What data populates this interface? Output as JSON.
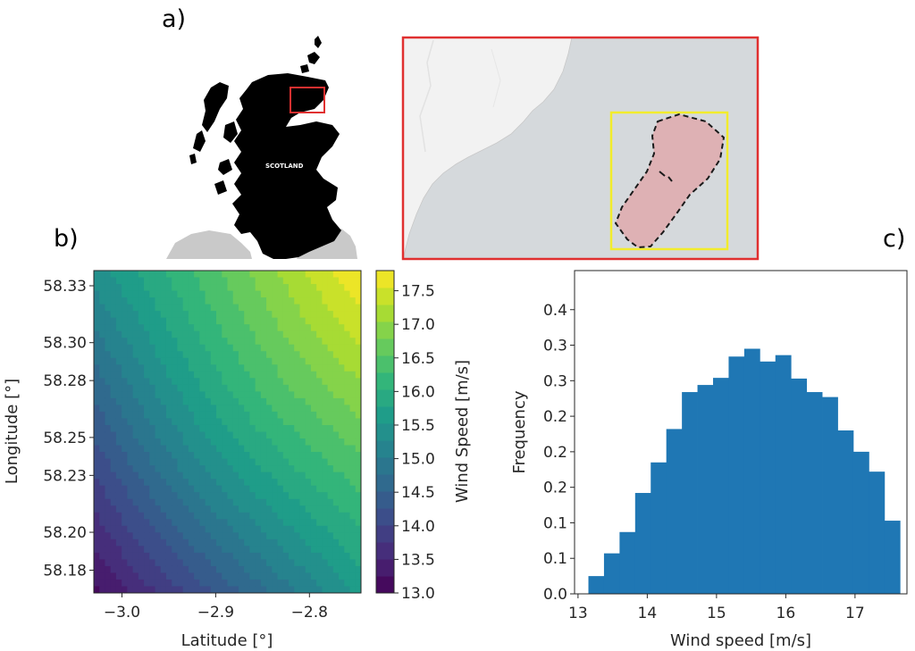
{
  "panels": {
    "a": "a)",
    "b": "b)",
    "c": "c)"
  },
  "map": {
    "country_label": "SCOTLAND",
    "colors": {
      "land": "#000000",
      "sea_inset": "#d5d9dc",
      "land_inset": "#f2f2f2",
      "highlight_box": "#e03030",
      "site_box": "#f2ec2c",
      "site_fill": "#deb1b4"
    }
  },
  "chart_data": [
    {
      "type": "heatmap",
      "xlabel": "Latitude [°]",
      "ylabel": "Longitude [°]",
      "xlim": [
        -3.03,
        -2.745
      ],
      "ylim": [
        58.168,
        58.338
      ],
      "x_ticks": [
        -3.0,
        -2.9,
        -2.8
      ],
      "x_tick_labels": [
        "−3.0",
        "−2.9",
        "−2.8"
      ],
      "y_ticks": [
        58.18,
        58.2,
        58.23,
        58.25,
        58.28,
        58.3,
        58.33
      ],
      "y_tick_labels": [
        "58.18",
        "58.20",
        "58.23",
        "58.25",
        "58.28",
        "58.30",
        "58.33"
      ],
      "colormap": "viridis",
      "value_range": [
        13.0,
        17.8
      ],
      "field": {
        "description_units": "m/s",
        "corner_values": {
          "bottom_left": 13.2,
          "bottom_right": 15.6,
          "top_left": 15.4,
          "top_right": 17.8
        }
      },
      "colorbar": {
        "label": "Wind Speed [m/s]",
        "ticks": [
          13.0,
          13.5,
          14.0,
          14.5,
          15.0,
          15.5,
          16.0,
          16.5,
          17.0,
          17.5
        ],
        "tick_labels": [
          "13.0",
          "13.5",
          "14.0",
          "14.5",
          "15.0",
          "15.5",
          "16.0",
          "16.5",
          "17.0",
          "17.5"
        ],
        "levels": 19
      }
    },
    {
      "type": "bar",
      "xlabel": "Wind speed [m/s]",
      "ylabel": "Frequency",
      "color": "#1f77b4",
      "xlim": [
        12.95,
        17.75
      ],
      "ylim": [
        0,
        0.455
      ],
      "x_ticks": [
        13,
        14,
        15,
        16,
        17
      ],
      "x_tick_labels": [
        "13",
        "14",
        "15",
        "16",
        "17"
      ],
      "y_ticks": [
        0.0,
        0.05,
        0.1,
        0.15,
        0.2,
        0.25,
        0.3,
        0.35,
        0.4
      ],
      "y_tick_labels": [
        "0.0",
        "0.1",
        "0.1",
        "0.2",
        "0.2",
        "0.2",
        "0.3",
        "0.3",
        "0.4"
      ],
      "bin_edges": [
        13.15,
        13.375,
        13.6,
        13.825,
        14.05,
        14.275,
        14.5,
        14.725,
        14.95,
        15.175,
        15.4,
        15.625,
        15.85,
        16.075,
        16.3,
        16.525,
        16.75,
        16.975,
        17.2,
        17.425,
        17.65
      ],
      "values": [
        0.025,
        0.057,
        0.087,
        0.142,
        0.185,
        0.232,
        0.284,
        0.294,
        0.304,
        0.334,
        0.345,
        0.327,
        0.336,
        0.303,
        0.284,
        0.277,
        0.23,
        0.2,
        0.172,
        0.103
      ]
    }
  ]
}
